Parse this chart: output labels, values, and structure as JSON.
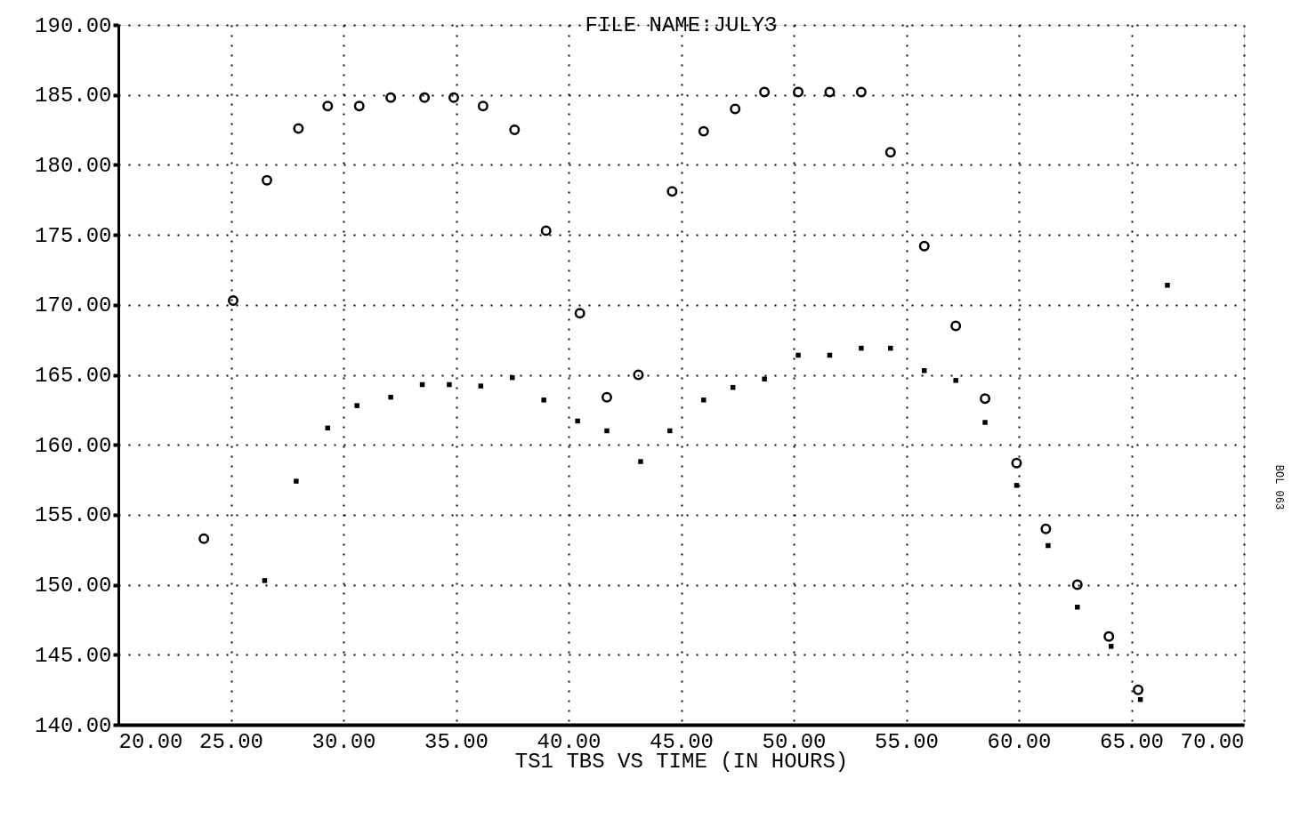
{
  "chart_data": {
    "type": "scatter",
    "title": "FILE NAME:JULY3",
    "xlabel": "TS1 TBS VS TIME (IN HOURS)",
    "xlim": [
      20,
      70
    ],
    "ylim": [
      140,
      190
    ],
    "xticks": [
      {
        "value": 20,
        "label": "20.00"
      },
      {
        "value": 25,
        "label": "25.00"
      },
      {
        "value": 30,
        "label": "30.00"
      },
      {
        "value": 35,
        "label": "35.00"
      },
      {
        "value": 40,
        "label": "40.00"
      },
      {
        "value": 45,
        "label": "45.00"
      },
      {
        "value": 50,
        "label": "50.00"
      },
      {
        "value": 55,
        "label": "55.00"
      },
      {
        "value": 60,
        "label": "60.00"
      },
      {
        "value": 65,
        "label": "65.00"
      },
      {
        "value": 70,
        "label": "70.00"
      }
    ],
    "yticks": [
      {
        "value": 140,
        "label": "140.00"
      },
      {
        "value": 145,
        "label": "145.00"
      },
      {
        "value": 150,
        "label": "150.00"
      },
      {
        "value": 155,
        "label": "155.00"
      },
      {
        "value": 160,
        "label": "160.00"
      },
      {
        "value": 165,
        "label": "165.00"
      },
      {
        "value": 170,
        "label": "170.00"
      },
      {
        "value": 175,
        "label": "175.00"
      },
      {
        "value": 180,
        "label": "180.00"
      },
      {
        "value": 185,
        "label": "185.00"
      },
      {
        "value": 190,
        "label": "190.00"
      }
    ],
    "grid": true,
    "annotations": [
      "BOL 063"
    ],
    "series": [
      {
        "color": "#000000",
        "marker": "circle",
        "x": [
          23.8,
          25.1,
          26.6,
          28.0,
          29.3,
          30.7,
          32.1,
          33.6,
          34.9,
          36.2,
          37.6,
          39.0,
          40.5,
          41.7,
          43.1,
          44.6,
          46.0,
          47.4,
          48.7,
          50.2,
          51.6,
          53.0,
          54.3,
          55.8,
          57.2,
          58.5,
          59.9,
          61.2,
          62.6,
          64.0,
          65.3
        ],
        "values": [
          153.3,
          170.3,
          178.9,
          182.6,
          184.2,
          184.2,
          184.8,
          184.8,
          184.8,
          184.2,
          182.5,
          175.3,
          169.4,
          163.4,
          165.0,
          178.1,
          182.4,
          184.0,
          185.2,
          185.2,
          185.2,
          185.2,
          180.9,
          174.2,
          168.5,
          163.3,
          158.7,
          154.0,
          150.0,
          146.3,
          142.5
        ]
      },
      {
        "color": "#000000",
        "marker": "square",
        "x": [
          26.5,
          27.9,
          29.3,
          30.6,
          32.1,
          33.5,
          34.7,
          36.1,
          37.5,
          38.9,
          40.4,
          41.7,
          43.2,
          44.5,
          46.0,
          47.3,
          48.7,
          50.2,
          51.6,
          53.0,
          54.3,
          55.8,
          57.2,
          58.5,
          59.9,
          61.3,
          62.6,
          64.1,
          65.4,
          66.6
        ],
        "values": [
          150.3,
          157.4,
          161.2,
          162.8,
          163.4,
          164.3,
          164.3,
          164.2,
          164.8,
          163.2,
          161.7,
          161.0,
          158.8,
          161.0,
          163.2,
          164.1,
          164.7,
          166.4,
          166.4,
          166.9,
          166.9,
          165.3,
          164.6,
          161.6,
          157.1,
          152.8,
          148.4,
          145.6,
          141.8,
          171.4
        ]
      }
    ]
  }
}
